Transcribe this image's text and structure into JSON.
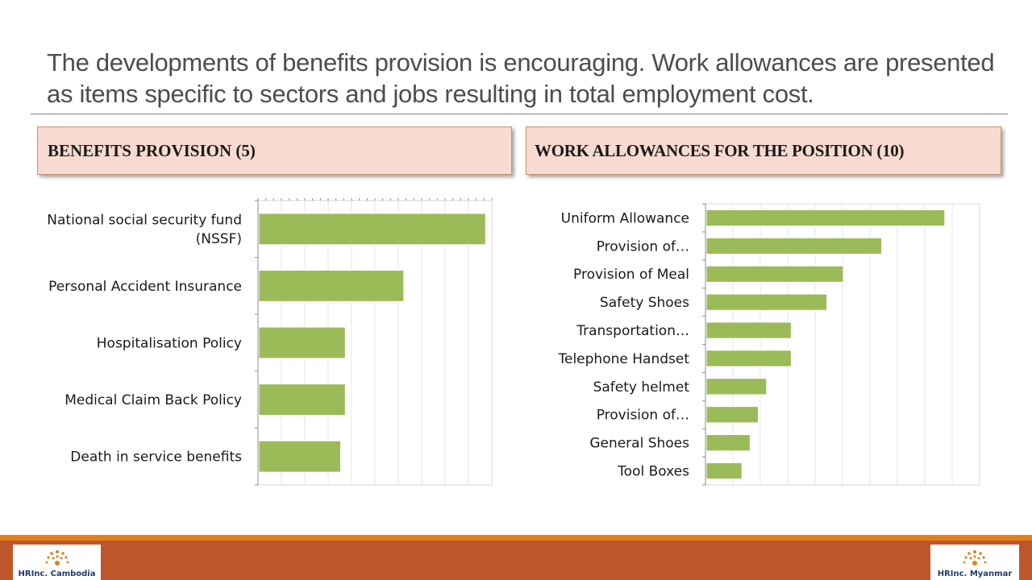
{
  "slide": {
    "title": "The developments of benefits provision is encouraging.  Work allowances are presented as items specific to sectors and jobs resulting in total employment cost."
  },
  "sections": {
    "left_header": "BENEFITS PROVISION (5)",
    "right_header": "WORK ALLOWANCES FOR THE POSITION (10)"
  },
  "colors": {
    "bar": "#9bbb59",
    "bar_edge": "#ffffff",
    "header_fill": "#f8dbd0",
    "footer": "#bd572b",
    "footer_line": "#e0801f"
  },
  "chart_data": [
    {
      "type": "bar",
      "orientation": "horizontal",
      "categories": [
        "National social security fund (NSSF)",
        "Personal Accident Insurance",
        "Hospitalisation Policy",
        "Medical Claim Back Policy",
        "Death in service benefits"
      ],
      "values": [
        97,
        62,
        37,
        37,
        35
      ],
      "xlim": [
        0,
        100
      ],
      "grid": true,
      "legend": "none"
    },
    {
      "type": "bar",
      "orientation": "horizontal",
      "categories": [
        "Uniform Allowance",
        "Provision of…",
        "Provision of Meal",
        "Safety Shoes",
        "Transportation…",
        "Telephone Handset",
        "Safety helmet",
        "Provision of…",
        "General Shoes",
        "Tool Boxes"
      ],
      "values": [
        87,
        64,
        50,
        44,
        31,
        31,
        22,
        19,
        16,
        13
      ],
      "xlim": [
        0,
        100
      ],
      "grid": true,
      "legend": "none"
    }
  ],
  "logos": {
    "left": "HRInc. Cambodia",
    "right": "HRInc. Myanmar"
  }
}
